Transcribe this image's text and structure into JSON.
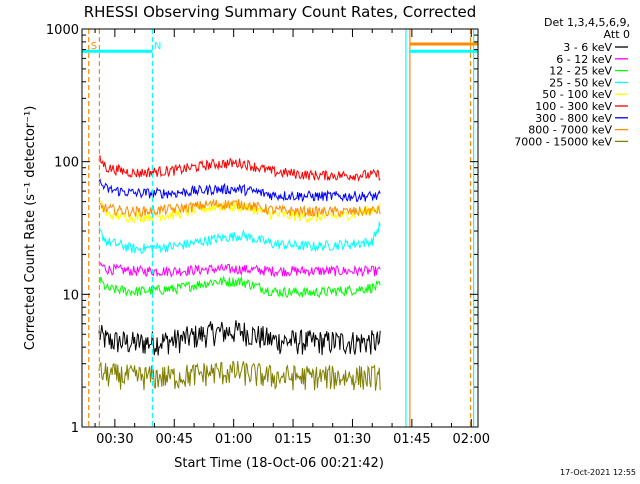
{
  "chart_data": {
    "type": "line",
    "title": "RHESSI Observing Summary Count Rates, Corrected",
    "xlabel": "Start Time (18-Oct-06 00:21:42)",
    "ylabel": "Corrected Count Rate (s⁻¹ detector⁻¹)",
    "y_scale": "log",
    "ylim": [
      1,
      1000
    ],
    "y_ticks": [
      1,
      10,
      100,
      1000
    ],
    "x_unit": "minutes after 00:00 UT, 18-Oct-06",
    "xlim": [
      21.7,
      121.7
    ],
    "x_ticks": [
      {
        "value": 30,
        "label": "00:30"
      },
      {
        "value": 45,
        "label": "00:45"
      },
      {
        "value": 60,
        "label": "01:00"
      },
      {
        "value": 75,
        "label": "01:15"
      },
      {
        "value": 90,
        "label": "01:30"
      },
      {
        "value": 105,
        "label": "01:45"
      },
      {
        "value": 120,
        "label": "02:00"
      }
    ],
    "legend_position": "right",
    "legend_header": [
      "Det 1,3,4,5,6,9,",
      "Att 0"
    ],
    "series": [
      {
        "name": "3 - 6 keV",
        "color": "#000000",
        "x": [
          26,
          28,
          35,
          45,
          55,
          62,
          70,
          80,
          90,
          97
        ],
        "y": [
          5,
          4.5,
          4.3,
          4.5,
          5.2,
          5.3,
          4.5,
          4.4,
          4.4,
          4.4
        ]
      },
      {
        "name": "6 - 12 keV",
        "color": "#ff00ff",
        "x": [
          26,
          28,
          35,
          45,
          55,
          62,
          70,
          80,
          90,
          97
        ],
        "y": [
          17,
          15.5,
          15,
          15,
          15.5,
          15.5,
          15,
          15,
          15,
          15
        ]
      },
      {
        "name": "12 - 25 keV",
        "color": "#00ff00",
        "x": [
          26,
          28,
          35,
          45,
          55,
          62,
          70,
          80,
          90,
          97
        ],
        "y": [
          13,
          11,
          10.5,
          11,
          12.5,
          12.5,
          10.5,
          10.3,
          10.8,
          11.5
        ]
      },
      {
        "name": "25 - 50 keV",
        "color": "#00ffff",
        "x": [
          26,
          28,
          35,
          45,
          55,
          62,
          70,
          80,
          90,
          95,
          97
        ],
        "y": [
          30,
          25,
          22,
          23,
          26,
          28,
          24,
          23,
          24,
          25,
          34
        ]
      },
      {
        "name": "50 - 100 keV",
        "color": "#ffff00",
        "x": [
          26,
          28,
          35,
          45,
          55,
          62,
          70,
          80,
          90,
          97
        ],
        "y": [
          50,
          40,
          38,
          40,
          46,
          46,
          40,
          38,
          40,
          45
        ]
      },
      {
        "name": "100 - 300 keV",
        "color": "#ff0000",
        "x": [
          26,
          28,
          35,
          45,
          55,
          62,
          70,
          80,
          90,
          97
        ],
        "y": [
          105,
          90,
          82,
          86,
          96,
          98,
          84,
          79,
          79,
          80
        ]
      },
      {
        "name": "300 - 800 keV",
        "color": "#0000ff",
        "x": [
          26,
          28,
          35,
          45,
          55,
          62,
          70,
          80,
          90,
          97
        ],
        "y": [
          70,
          62,
          58,
          58,
          62,
          62,
          56,
          55,
          55,
          55
        ]
      },
      {
        "name": "800 - 7000 keV",
        "color": "#ff8c00",
        "x": [
          26,
          28,
          35,
          45,
          55,
          62,
          70,
          80,
          90,
          97
        ],
        "y": [
          47,
          44,
          42,
          44,
          48,
          48,
          43,
          42,
          42,
          43
        ]
      },
      {
        "name": "7000 - 15000 keV",
        "color": "#808000",
        "x": [
          26,
          28,
          35,
          45,
          55,
          62,
          70,
          80,
          90,
          97
        ],
        "y": [
          2.6,
          2.5,
          2.4,
          2.4,
          2.6,
          2.6,
          2.4,
          2.4,
          2.4,
          2.4
        ]
      }
    ],
    "markers": {
      "vertical_lines": [
        {
          "x": 23.4,
          "color": "#ff8c00",
          "dashed": true
        },
        {
          "x": 26.1,
          "color": "#ff8c00",
          "dashed": true
        },
        {
          "x": 39.5,
          "color": "#00ffff",
          "dashed": true
        },
        {
          "x": 103.5,
          "color": "#00ffff",
          "dashed": false
        },
        {
          "x": 104.5,
          "color": "#ff8c00",
          "dashed": false
        },
        {
          "x": 119.8,
          "color": "#ff8c00",
          "dashed": true
        },
        {
          "x": 120.6,
          "color": "#00ffff",
          "dashed": false
        }
      ],
      "horizontal_segments": [
        {
          "x": [
            21.7,
            39.5
          ],
          "y": 680,
          "color": "#00ffff"
        },
        {
          "x": [
            104.5,
            121.7
          ],
          "y": 770,
          "color": "#ff8c00"
        },
        {
          "x": [
            104.5,
            121.7
          ],
          "y": 680,
          "color": "#00ffff"
        }
      ],
      "flag_labels": [
        {
          "text": "S",
          "x": 24.7,
          "color": "#ff8c00"
        },
        {
          "text": "N",
          "x": 40.8,
          "color": "#00ffff"
        }
      ]
    }
  },
  "footer": {
    "timestamp": "17-Oct-2021 12:55"
  }
}
